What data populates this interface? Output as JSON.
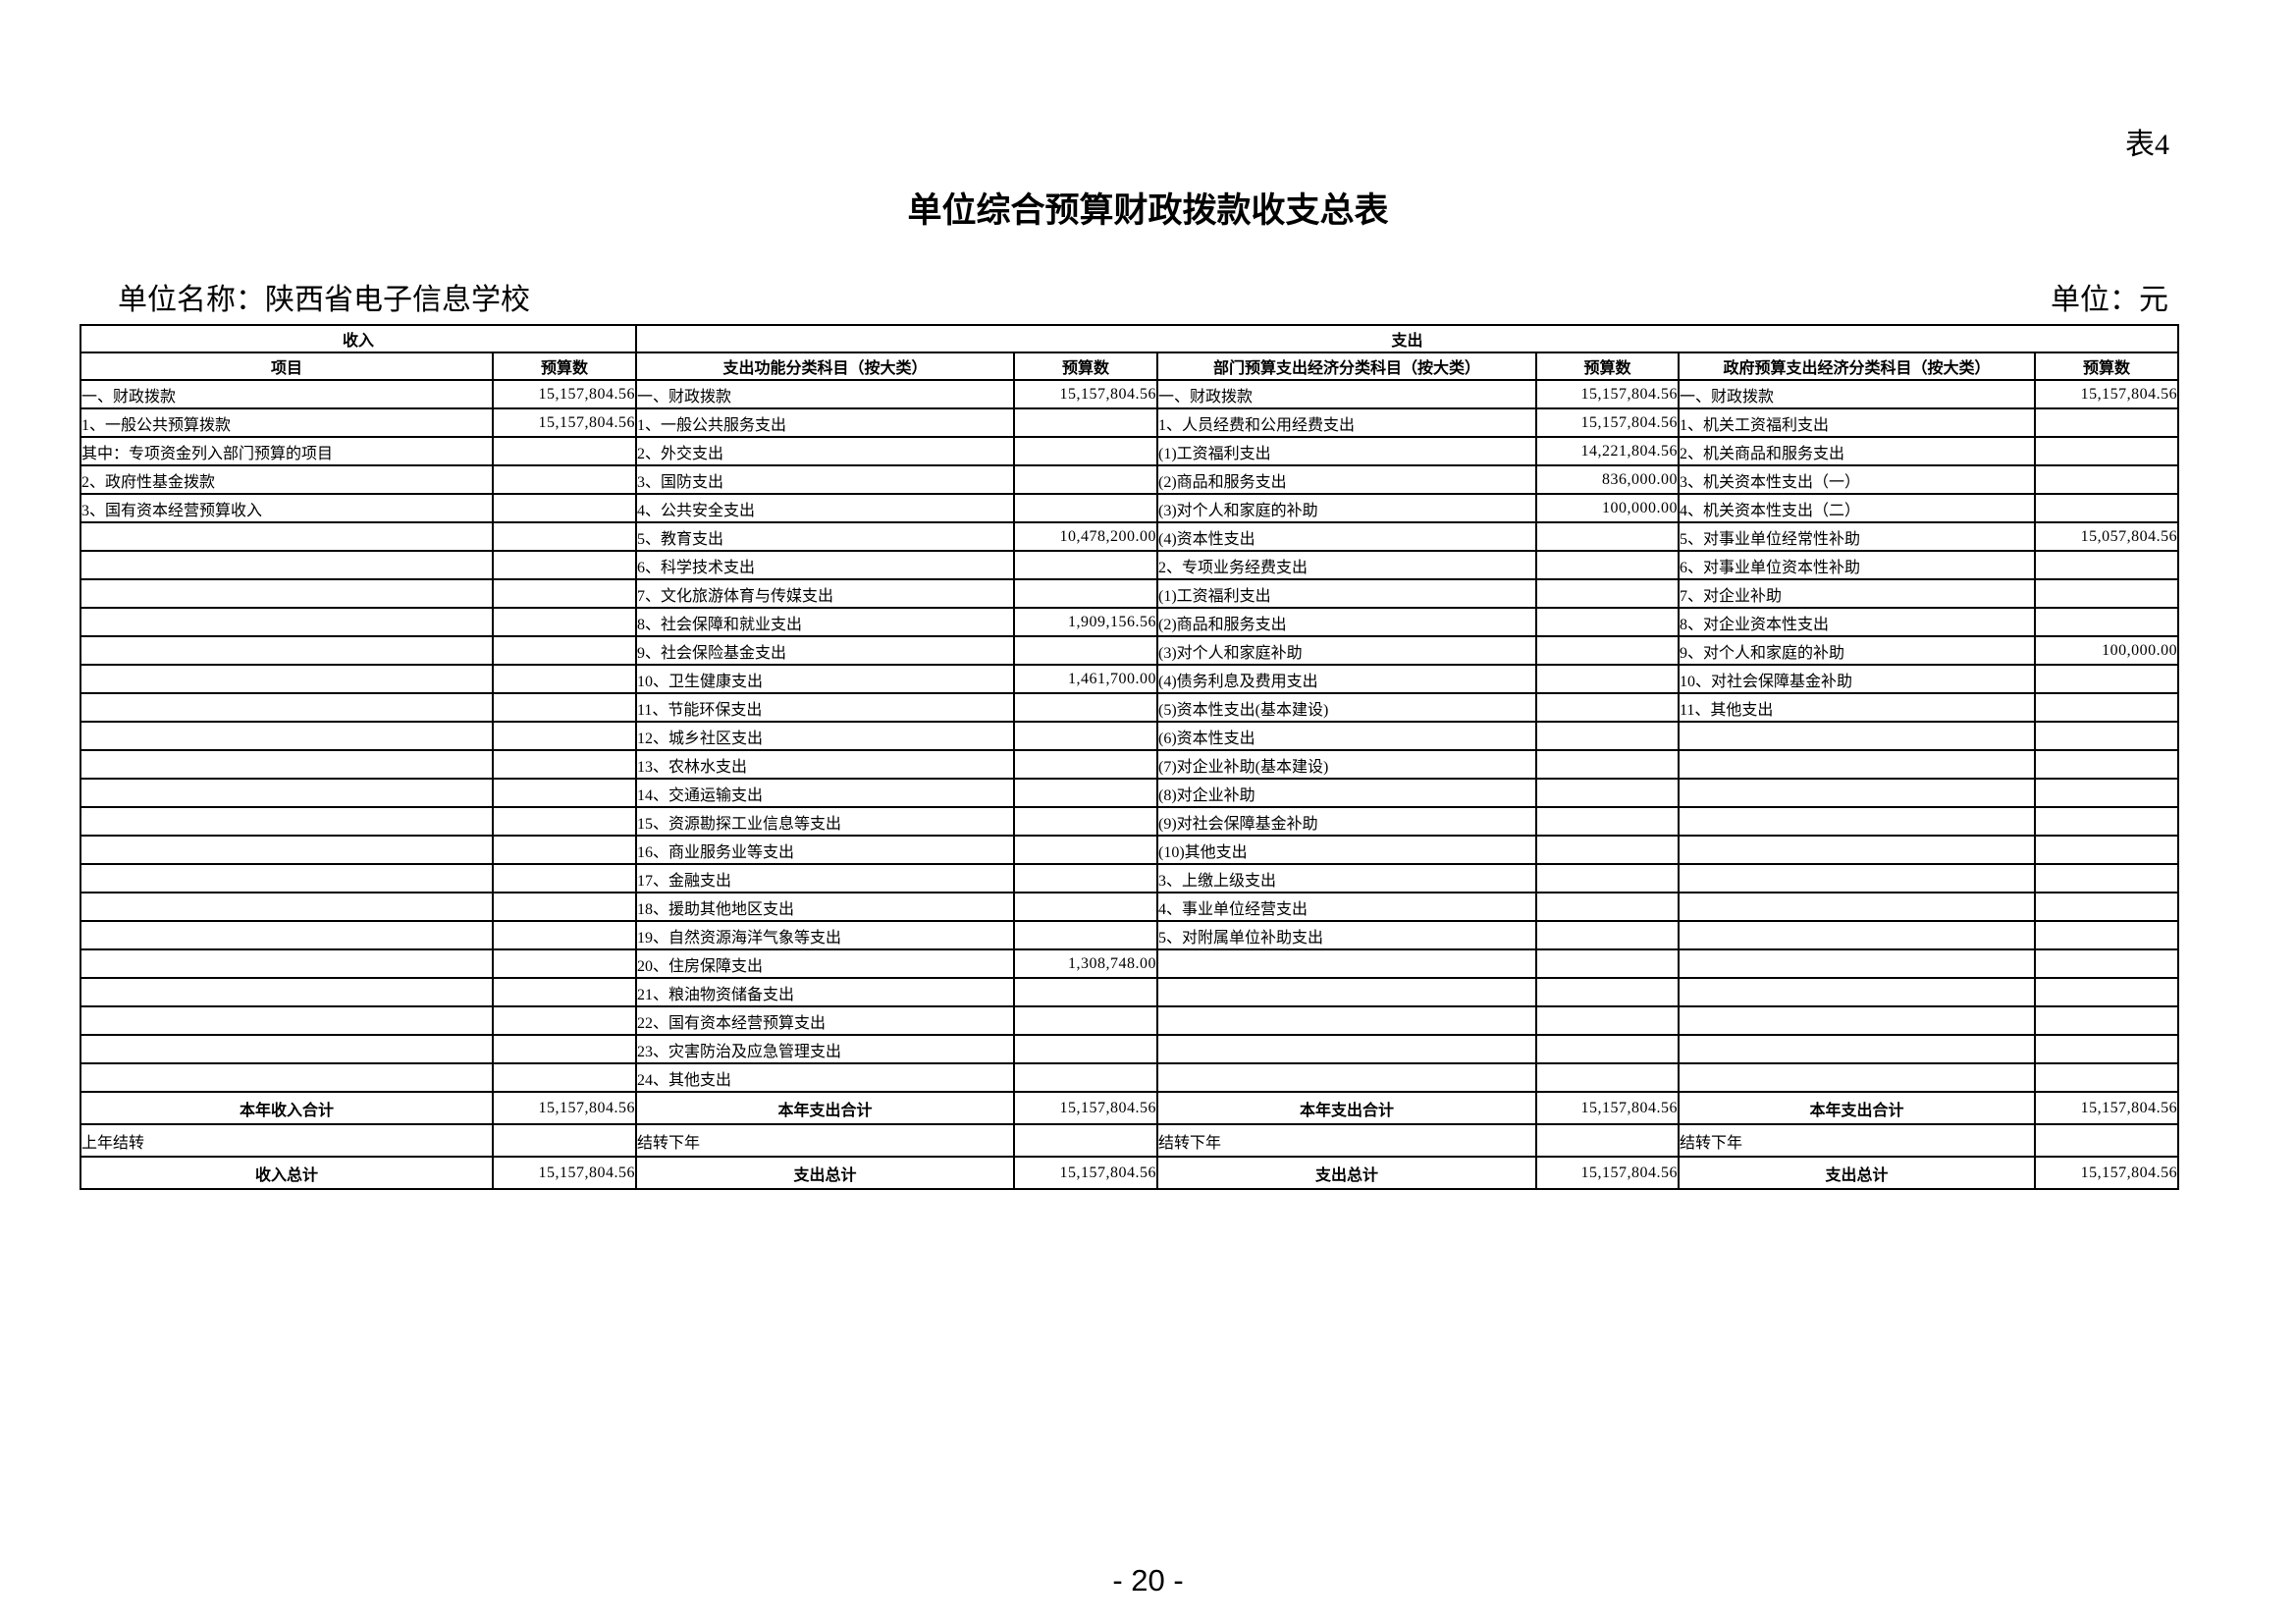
{
  "table_number": "表4",
  "title": "单位综合预算财政拨款收支总表",
  "unit_name": "单位名称：陕西省电子信息学校",
  "unit_of_measure": "单位：元",
  "page_number": "- 20 -",
  "colors": {
    "border": "#000000",
    "text": "#000000",
    "background": "#ffffff"
  },
  "table": {
    "group_headers": {
      "income": "收入",
      "expense": "支出"
    },
    "column_headers": [
      "项目",
      "预算数",
      "支出功能分类科目（按大类）",
      "预算数",
      "部门预算支出经济分类科目（按大类）",
      "预算数",
      "政府预算支出经济分类科目（按大类）",
      "预算数"
    ],
    "rows": [
      {
        "income": {
          "label": "一、财政拨款",
          "indent": 0,
          "value": "15,157,804.56"
        },
        "func": {
          "label": "一、财政拨款",
          "indent": 0,
          "value": "15,157,804.56"
        },
        "dept": {
          "label": "一、财政拨款",
          "indent": 0,
          "value": "15,157,804.56"
        },
        "gov": {
          "label": "一、财政拨款",
          "indent": 0,
          "value": "15,157,804.56"
        }
      },
      {
        "income": {
          "label": "1、一般公共预算拨款",
          "indent": 1,
          "value": "15,157,804.56"
        },
        "func": {
          "label": "1、一般公共服务支出",
          "indent": 1,
          "value": ""
        },
        "dept": {
          "label": "1、人员经费和公用经费支出",
          "indent": 1,
          "value": "15,157,804.56"
        },
        "gov": {
          "label": "1、机关工资福利支出",
          "indent": 1,
          "value": ""
        }
      },
      {
        "income": {
          "label": "其中：专项资金列入部门预算的项目",
          "indent": 2,
          "value": ""
        },
        "func": {
          "label": "2、外交支出",
          "indent": 1,
          "value": ""
        },
        "dept": {
          "label": "(1)工资福利支出",
          "indent": 2,
          "value": "14,221,804.56"
        },
        "gov": {
          "label": "2、机关商品和服务支出",
          "indent": 1,
          "value": ""
        }
      },
      {
        "income": {
          "label": "2、政府性基金拨款",
          "indent": 1,
          "value": ""
        },
        "func": {
          "label": "3、国防支出",
          "indent": 1,
          "value": ""
        },
        "dept": {
          "label": "(2)商品和服务支出",
          "indent": 2,
          "value": "836,000.00"
        },
        "gov": {
          "label": "3、机关资本性支出（一）",
          "indent": 1,
          "value": ""
        }
      },
      {
        "income": {
          "label": "3、国有资本经营预算收入",
          "indent": 1,
          "value": ""
        },
        "func": {
          "label": "4、公共安全支出",
          "indent": 1,
          "value": ""
        },
        "dept": {
          "label": "(3)对个人和家庭的补助",
          "indent": 2,
          "value": "100,000.00"
        },
        "gov": {
          "label": "4、机关资本性支出（二）",
          "indent": 1,
          "value": ""
        }
      },
      {
        "func": {
          "label": "5、教育支出",
          "indent": 1,
          "value": "10,478,200.00"
        },
        "dept": {
          "label": "(4)资本性支出",
          "indent": 2,
          "value": ""
        },
        "gov": {
          "label": "5、对事业单位经常性补助",
          "indent": 1,
          "value": "15,057,804.56"
        }
      },
      {
        "func": {
          "label": "6、科学技术支出",
          "indent": 1,
          "value": ""
        },
        "dept": {
          "label": "2、专项业务经费支出",
          "indent": 1,
          "value": ""
        },
        "gov": {
          "label": "6、对事业单位资本性补助",
          "indent": 1,
          "value": ""
        }
      },
      {
        "func": {
          "label": "7、文化旅游体育与传媒支出",
          "indent": 1,
          "value": ""
        },
        "dept": {
          "label": "(1)工资福利支出",
          "indent": 2,
          "value": ""
        },
        "gov": {
          "label": "7、对企业补助",
          "indent": 1,
          "value": ""
        }
      },
      {
        "func": {
          "label": "8、社会保障和就业支出",
          "indent": 1,
          "value": "1,909,156.56"
        },
        "dept": {
          "label": "(2)商品和服务支出",
          "indent": 2,
          "value": ""
        },
        "gov": {
          "label": "8、对企业资本性支出",
          "indent": 1,
          "value": ""
        }
      },
      {
        "func": {
          "label": "9、社会保险基金支出",
          "indent": 1,
          "value": ""
        },
        "dept": {
          "label": "(3)对个人和家庭补助",
          "indent": 2,
          "value": ""
        },
        "gov": {
          "label": "9、对个人和家庭的补助",
          "indent": 1,
          "value": "100,000.00"
        }
      },
      {
        "func": {
          "label": "10、卫生健康支出",
          "indent": 1,
          "value": "1,461,700.00"
        },
        "dept": {
          "label": "(4)债务利息及费用支出",
          "indent": 2,
          "value": ""
        },
        "gov": {
          "label": "10、对社会保障基金补助",
          "indent": 1,
          "value": ""
        }
      },
      {
        "func": {
          "label": "11、节能环保支出",
          "indent": 1,
          "value": ""
        },
        "dept": {
          "label": "(5)资本性支出(基本建设)",
          "indent": 2,
          "value": ""
        },
        "gov": {
          "label": "11、其他支出",
          "indent": 1,
          "value": ""
        }
      },
      {
        "func": {
          "label": "12、城乡社区支出",
          "indent": 1,
          "value": ""
        },
        "dept": {
          "label": "(6)资本性支出",
          "indent": 2,
          "value": ""
        }
      },
      {
        "func": {
          "label": "13、农林水支出",
          "indent": 1,
          "value": ""
        },
        "dept": {
          "label": "(7)对企业补助(基本建设)",
          "indent": 2,
          "value": ""
        }
      },
      {
        "func": {
          "label": "14、交通运输支出",
          "indent": 1,
          "value": ""
        },
        "dept": {
          "label": "(8)对企业补助",
          "indent": 2,
          "value": ""
        }
      },
      {
        "func": {
          "label": "15、资源勘探工业信息等支出",
          "indent": 1,
          "value": ""
        },
        "dept": {
          "label": "(9)对社会保障基金补助",
          "indent": 2,
          "value": ""
        }
      },
      {
        "func": {
          "label": "16、商业服务业等支出",
          "indent": 1,
          "value": ""
        },
        "dept": {
          "label": "(10)其他支出",
          "indent": 2,
          "value": ""
        }
      },
      {
        "func": {
          "label": "17、金融支出",
          "indent": 1,
          "value": ""
        },
        "dept": {
          "label": "3、上缴上级支出",
          "indent": 1,
          "value": ""
        }
      },
      {
        "func": {
          "label": "18、援助其他地区支出",
          "indent": 1,
          "value": ""
        },
        "dept": {
          "label": "4、事业单位经营支出",
          "indent": 1,
          "value": ""
        }
      },
      {
        "func": {
          "label": "19、自然资源海洋气象等支出",
          "indent": 1,
          "value": ""
        },
        "dept": {
          "label": "5、对附属单位补助支出",
          "indent": 1,
          "value": ""
        }
      },
      {
        "func": {
          "label": "20、住房保障支出",
          "indent": 1,
          "value": "1,308,748.00"
        }
      },
      {
        "func": {
          "label": "21、粮油物资储备支出",
          "indent": 1,
          "value": ""
        }
      },
      {
        "func": {
          "label": "22、国有资本经营预算支出",
          "indent": 1,
          "value": ""
        }
      },
      {
        "func": {
          "label": "23、灾害防治及应急管理支出",
          "indent": 1,
          "value": ""
        }
      },
      {
        "func": {
          "label": "24、其他支出",
          "indent": 1,
          "value": ""
        }
      }
    ],
    "totals": [
      {
        "emphasis": true,
        "cells": [
          {
            "label": "本年收入合计",
            "value": "15,157,804.56"
          },
          {
            "label": "本年支出合计",
            "value": "15,157,804.56"
          },
          {
            "label": "本年支出合计",
            "value": "15,157,804.56"
          },
          {
            "label": "本年支出合计",
            "value": "15,157,804.56"
          }
        ]
      },
      {
        "emphasis": false,
        "cells": [
          {
            "label": "上年结转",
            "value": ""
          },
          {
            "label": "结转下年",
            "value": ""
          },
          {
            "label": "结转下年",
            "value": ""
          },
          {
            "label": "结转下年",
            "value": ""
          }
        ]
      },
      {
        "emphasis": true,
        "cells": [
          {
            "label": "收入总计",
            "value": "15,157,804.56"
          },
          {
            "label": "支出总计",
            "value": "15,157,804.56"
          },
          {
            "label": "支出总计",
            "value": "15,157,804.56"
          },
          {
            "label": "支出总计",
            "value": "15,157,804.56"
          }
        ]
      }
    ]
  }
}
